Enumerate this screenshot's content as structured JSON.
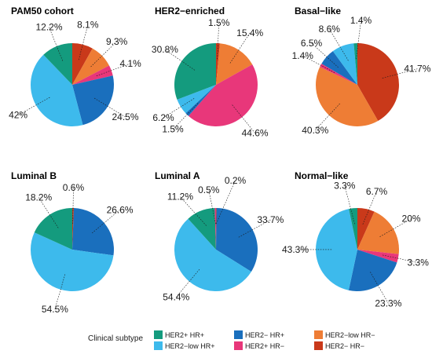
{
  "chart_data": {
    "type": "pie",
    "legend": {
      "title": "Clinical subtype",
      "placement": "bottom",
      "entries": [
        {
          "key": "h2p_hrp",
          "label": "HER2+ HR+",
          "color": "#149b7e"
        },
        {
          "key": "h2m_hrp",
          "label": "HER2− HR+",
          "color": "#1a6fbd"
        },
        {
          "key": "h2low_hrm",
          "label": "HER2−low HR−",
          "color": "#ee7d35"
        },
        {
          "key": "h2low_hrp",
          "label": "HER2−low HR+",
          "color": "#3dbaec"
        },
        {
          "key": "h2p_hrm",
          "label": "HER2+ HR−",
          "color": "#e8377a"
        },
        {
          "key": "h2m_hrm",
          "label": "HER2− HR−",
          "color": "#c9391a"
        }
      ]
    },
    "charts": [
      {
        "title": "PAM50 cohort",
        "slices": [
          {
            "key": "h2m_hrm",
            "value": 8.1,
            "label": "8.1%"
          },
          {
            "key": "h2low_hrm",
            "value": 9.3,
            "label": "9.3%"
          },
          {
            "key": "h2p_hrm",
            "value": 4.1,
            "label": "4.1%"
          },
          {
            "key": "h2m_hrp",
            "value": 24.5,
            "label": "24.5%"
          },
          {
            "key": "h2low_hrp",
            "value": 42,
            "label": "42%"
          },
          {
            "key": "h2p_hrp",
            "value": 12.2,
            "label": "12.2%"
          }
        ]
      },
      {
        "title": "HER2−enriched",
        "slices": [
          {
            "key": "h2m_hrm",
            "value": 1.5,
            "label": "1.5%"
          },
          {
            "key": "h2low_hrm",
            "value": 15.4,
            "label": "15.4%"
          },
          {
            "key": "h2p_hrm",
            "value": 44.6,
            "label": "44.6%"
          },
          {
            "key": "h2m_hrp",
            "value": 1.5,
            "label": "1.5%"
          },
          {
            "key": "h2low_hrp",
            "value": 6.2,
            "label": "6.2%"
          },
          {
            "key": "h2p_hrp",
            "value": 30.8,
            "label": "30.8%"
          }
        ]
      },
      {
        "title": "Basal−like",
        "slices": [
          {
            "key": "h2m_hrm",
            "value": 41.7,
            "label": "41.7%"
          },
          {
            "key": "h2low_hrm",
            "value": 40.3,
            "label": "40.3%"
          },
          {
            "key": "h2p_hrm",
            "value": 1.4,
            "label": "1.4%"
          },
          {
            "key": "h2m_hrp",
            "value": 6.5,
            "label": "6.5%"
          },
          {
            "key": "h2low_hrp",
            "value": 8.6,
            "label": "8.6%"
          },
          {
            "key": "h2p_hrp",
            "value": 1.4,
            "label": "1.4%"
          }
        ]
      },
      {
        "title": "Luminal B",
        "slices": [
          {
            "key": "h2m_hrm",
            "value": 0.6,
            "label": "0.6%"
          },
          {
            "key": "h2m_hrp",
            "value": 26.6,
            "label": "26.6%"
          },
          {
            "key": "h2low_hrp",
            "value": 54.5,
            "label": "54.5%"
          },
          {
            "key": "h2p_hrp",
            "value": 18.2,
            "label": "18.2%"
          }
        ]
      },
      {
        "title": "Luminal A",
        "slices": [
          {
            "key": "h2m_hrm",
            "value": 0.2,
            "label": "0.2%"
          },
          {
            "key": "h2m_hrp",
            "value": 33.7,
            "label": "33.7%"
          },
          {
            "key": "h2low_hrp",
            "value": 54.4,
            "label": "54.4%"
          },
          {
            "key": "h2p_hrp",
            "value": 11.2,
            "label": "11.2%"
          },
          {
            "key": "h2p_hrm",
            "value": 0.5,
            "label": "0.5%"
          }
        ]
      },
      {
        "title": "Normal−like",
        "slices": [
          {
            "key": "h2m_hrm",
            "value": 6.7,
            "label": "6.7%"
          },
          {
            "key": "h2low_hrm",
            "value": 20,
            "label": "20%"
          },
          {
            "key": "h2p_hrm",
            "value": 3.3,
            "label": "3.3%"
          },
          {
            "key": "h2m_hrp",
            "value": 23.3,
            "label": "23.3%"
          },
          {
            "key": "h2low_hrp",
            "value": 43.3,
            "label": "43.3%"
          },
          {
            "key": "h2p_hrp",
            "value": 3.3,
            "label": "3.3%"
          }
        ]
      }
    ]
  }
}
